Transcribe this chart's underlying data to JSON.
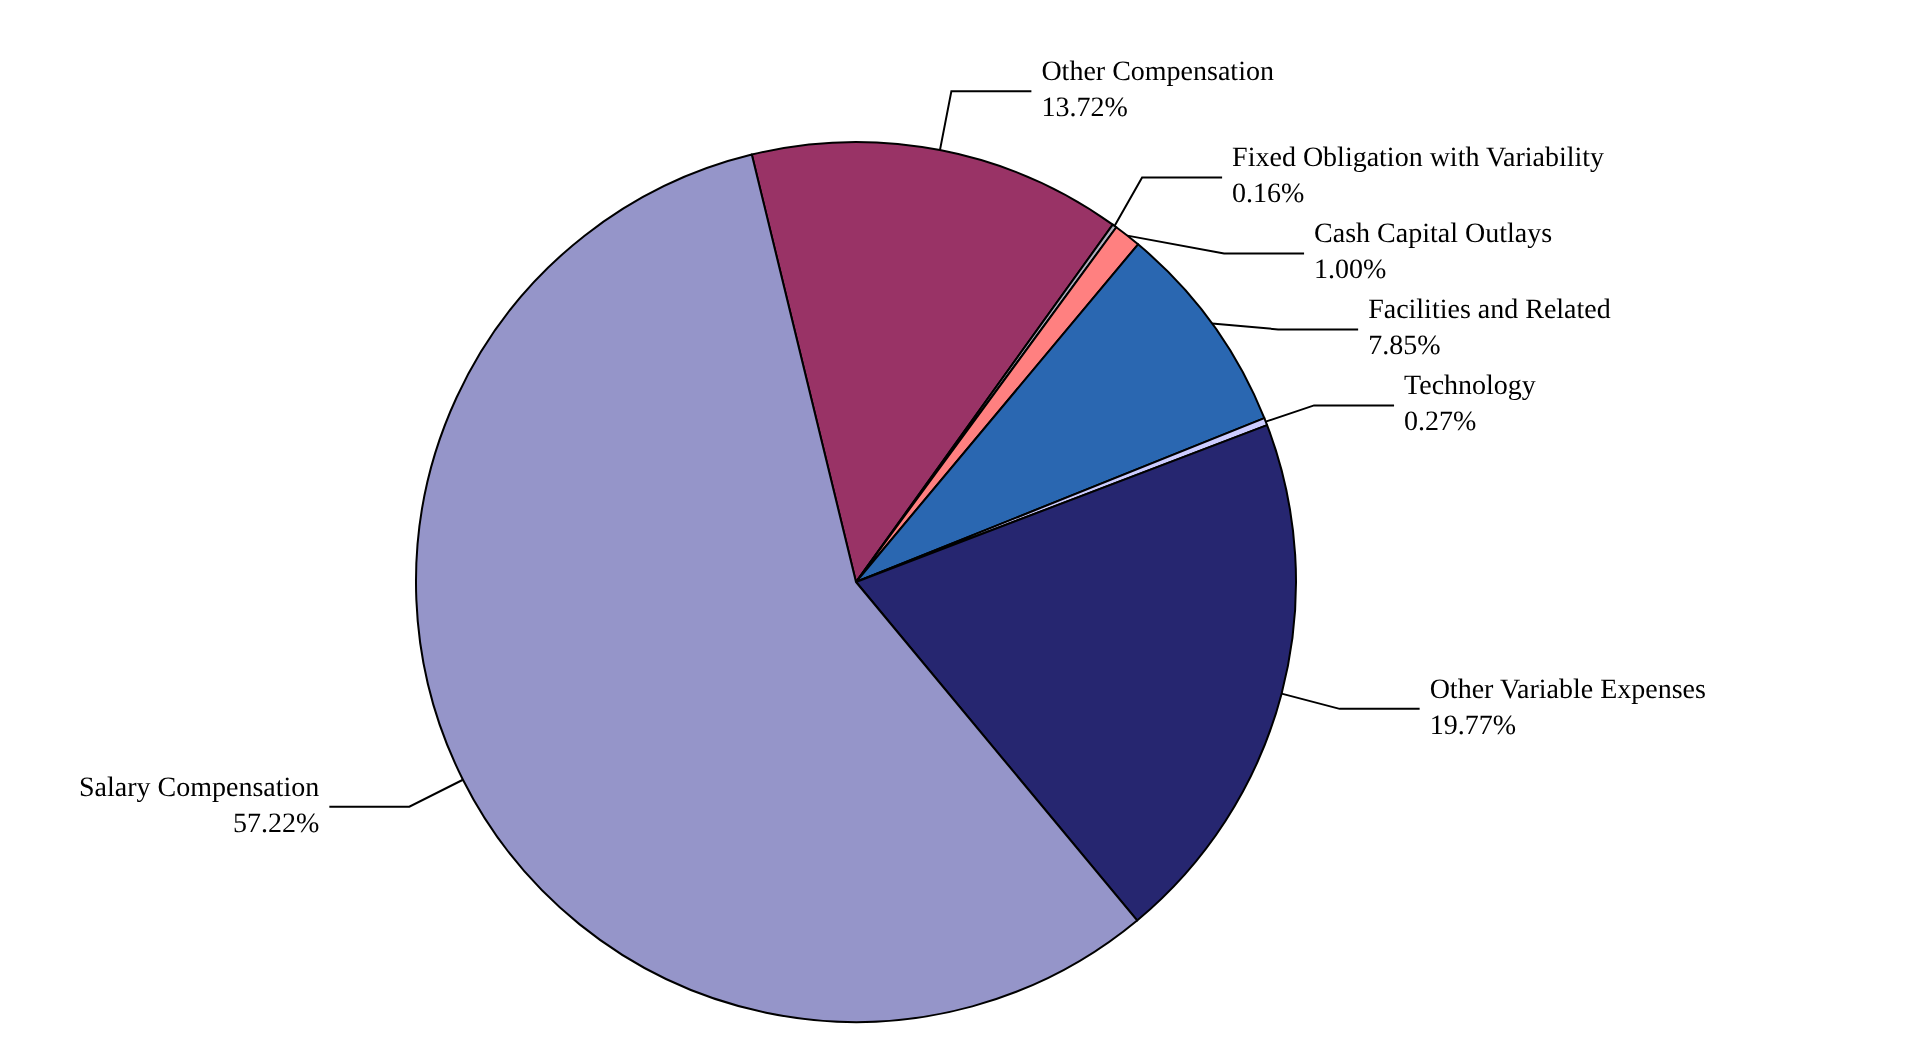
{
  "chart_data": {
    "type": "pie",
    "categories": [
      "Other Compensation",
      "Fixed Obligation with Variability",
      "Cash Capital Outlays",
      "Facilities and Related",
      "Technology",
      "Other Variable Expenses",
      "Salary Compensation"
    ],
    "values": [
      13.72,
      0.16,
      1.0,
      7.85,
      0.27,
      19.77,
      57.22
    ],
    "value_labels": [
      "13.72%",
      "0.16%",
      "1.00%",
      "7.85%",
      "0.27%",
      "19.77%",
      "57.22%"
    ],
    "colors": [
      "#993366",
      "#b0b0c0",
      "#ff8080",
      "#2a67b1",
      "#ccccff",
      "#262670",
      "#9595c9"
    ],
    "legend": false
  }
}
